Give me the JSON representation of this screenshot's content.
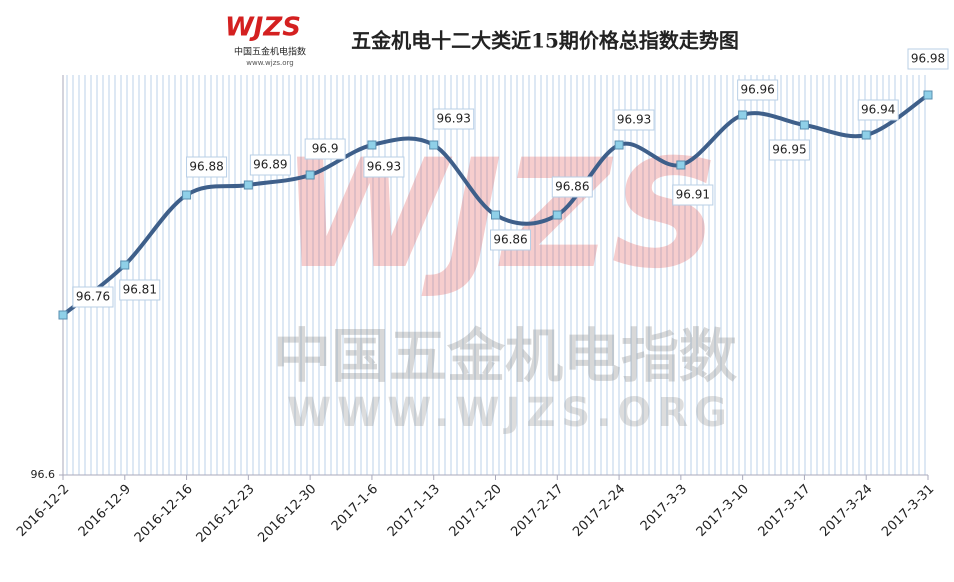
{
  "chart_data": {
    "type": "line",
    "title": "五金机电十二大类近15期价格总指数走势图",
    "logo_text": "WJZS",
    "logo_subtitle": "中国五金机电指数",
    "logo_url": "www.wjzs.org",
    "watermark_logo": "WJZS",
    "watermark_title": "中国五金机电指数",
    "watermark_url": "WWW.WJZS.ORG",
    "categories": [
      "2016-12-2",
      "2016-12-9",
      "2016-12-16",
      "2016-12-23",
      "2016-12-30",
      "2017-1-6",
      "2017-1-13",
      "2017-1-20",
      "2017-2-17",
      "2017-2-24",
      "2017-3-3",
      "2017-3-10",
      "2017-3-17",
      "2017-3-24",
      "2017-3-31"
    ],
    "values": [
      96.76,
      96.81,
      96.88,
      96.89,
      96.9,
      96.93,
      96.93,
      96.86,
      96.86,
      96.93,
      96.91,
      96.96,
      96.95,
      96.94,
      96.98
    ],
    "color": "#3e5f8a",
    "marker_color": "#8fd0e8",
    "ylim": [
      96.6,
      97.0
    ],
    "yticks": [
      96.6
    ],
    "grid": true
  }
}
